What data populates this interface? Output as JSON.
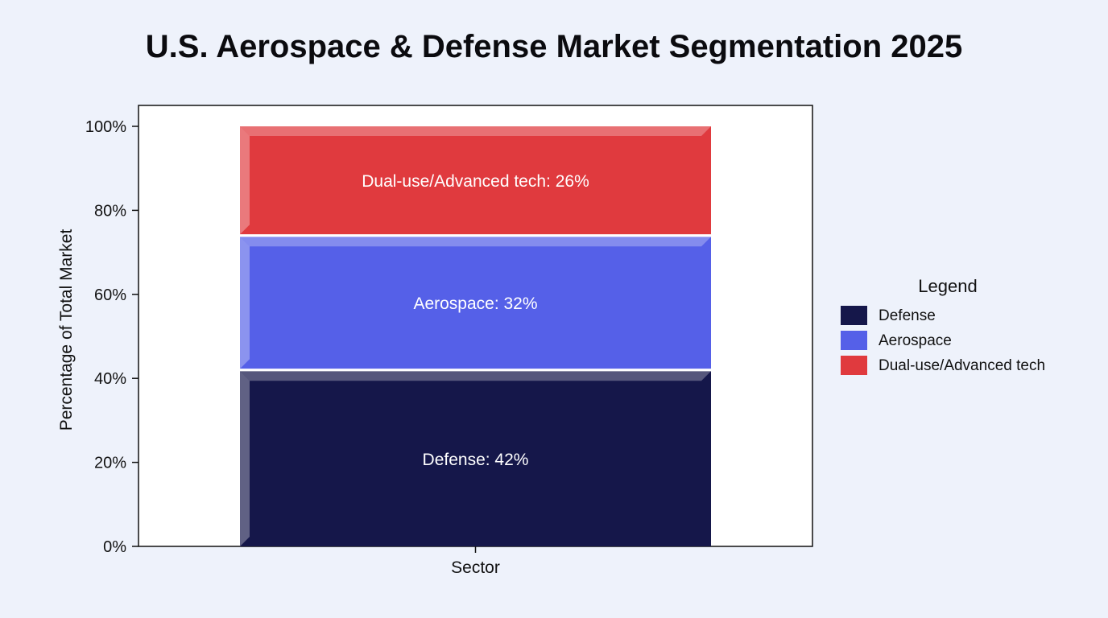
{
  "chart_data": {
    "type": "bar",
    "stacked": true,
    "normalized_percent": true,
    "title": "U.S. Aerospace & Defense Market Segmentation 2025",
    "xlabel": "Sector",
    "ylabel": "Percentage of Total Market",
    "categories": [
      ""
    ],
    "ylim": [
      0,
      100
    ],
    "yticks": [
      "0%",
      "20%",
      "40%",
      "60%",
      "80%",
      "100%"
    ],
    "grid": false,
    "series": [
      {
        "name": "Defense",
        "values": [
          42
        ],
        "color": "#15174a",
        "label": "Defense: 42%"
      },
      {
        "name": "Aerospace",
        "values": [
          32
        ],
        "color": "#5560e8",
        "label": "Aerospace: 32%"
      },
      {
        "name": "Dual-use/Advanced tech",
        "values": [
          26
        ],
        "color": "#e03a3e",
        "label": "Dual-use/Advanced tech: 26%"
      }
    ],
    "legend": {
      "title": "Legend",
      "placement": "right"
    }
  }
}
